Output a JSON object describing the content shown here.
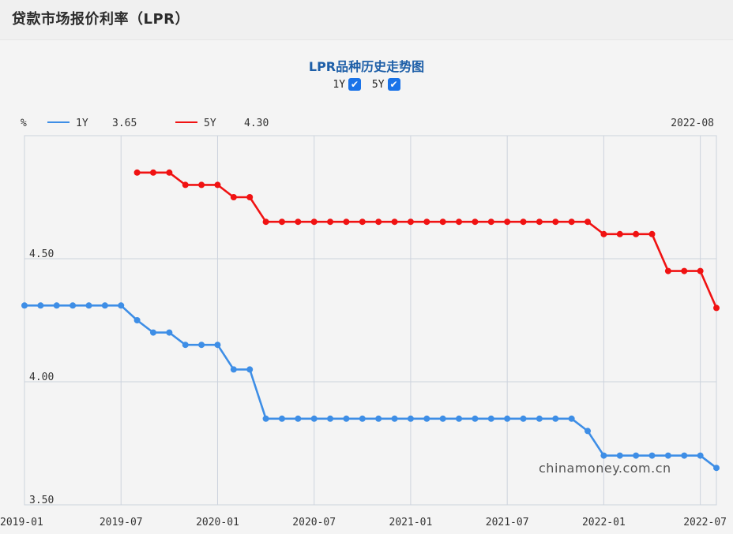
{
  "page_title": "贷款市场报价利率（LPR）",
  "chart_title": "LPR品种历史走势图",
  "toggles": [
    {
      "label": "1Y",
      "checked": true
    },
    {
      "label": "5Y",
      "checked": true
    }
  ],
  "watermark": "chinamoney.com.cn",
  "colors": {
    "series_1y": "#3e8ee6",
    "series_5y": "#f01212",
    "grid": "#cdd3dd",
    "axis_text": "#333333"
  },
  "chart_data": {
    "type": "line",
    "ylabel": "%",
    "cursor_date": "2022-08",
    "ylim": [
      3.5,
      5.0
    ],
    "y_ticks": [
      {
        "value": 3.5,
        "label": "3.50"
      },
      {
        "value": 4.0,
        "label": "4.00"
      },
      {
        "value": 4.5,
        "label": "4.50"
      }
    ],
    "x_ticks": [
      "2019-01",
      "2019-07",
      "2020-01",
      "2020-07",
      "2021-01",
      "2021-07",
      "2022-01",
      "2022-07"
    ],
    "x_range": [
      "2019-01",
      "2022-08"
    ],
    "grid": true,
    "legend_position": "top-left",
    "series": [
      {
        "name": "1Y",
        "latest": "3.65",
        "data": [
          [
            "2019-01",
            4.31
          ],
          [
            "2019-02",
            4.31
          ],
          [
            "2019-03",
            4.31
          ],
          [
            "2019-04",
            4.31
          ],
          [
            "2019-05",
            4.31
          ],
          [
            "2019-06",
            4.31
          ],
          [
            "2019-07",
            4.31
          ],
          [
            "2019-08",
            4.25
          ],
          [
            "2019-09",
            4.2
          ],
          [
            "2019-10",
            4.2
          ],
          [
            "2019-11",
            4.15
          ],
          [
            "2019-12",
            4.15
          ],
          [
            "2020-01",
            4.15
          ],
          [
            "2020-02",
            4.05
          ],
          [
            "2020-03",
            4.05
          ],
          [
            "2020-04",
            3.85
          ],
          [
            "2020-05",
            3.85
          ],
          [
            "2020-06",
            3.85
          ],
          [
            "2020-07",
            3.85
          ],
          [
            "2020-08",
            3.85
          ],
          [
            "2020-09",
            3.85
          ],
          [
            "2020-10",
            3.85
          ],
          [
            "2020-11",
            3.85
          ],
          [
            "2020-12",
            3.85
          ],
          [
            "2021-01",
            3.85
          ],
          [
            "2021-02",
            3.85
          ],
          [
            "2021-03",
            3.85
          ],
          [
            "2021-04",
            3.85
          ],
          [
            "2021-05",
            3.85
          ],
          [
            "2021-06",
            3.85
          ],
          [
            "2021-07",
            3.85
          ],
          [
            "2021-08",
            3.85
          ],
          [
            "2021-09",
            3.85
          ],
          [
            "2021-10",
            3.85
          ],
          [
            "2021-11",
            3.85
          ],
          [
            "2021-12",
            3.8
          ],
          [
            "2022-01",
            3.7
          ],
          [
            "2022-02",
            3.7
          ],
          [
            "2022-03",
            3.7
          ],
          [
            "2022-04",
            3.7
          ],
          [
            "2022-05",
            3.7
          ],
          [
            "2022-06",
            3.7
          ],
          [
            "2022-07",
            3.7
          ],
          [
            "2022-08",
            3.65
          ]
        ]
      },
      {
        "name": "5Y",
        "latest": "4.30",
        "data": [
          [
            "2019-08",
            4.85
          ],
          [
            "2019-09",
            4.85
          ],
          [
            "2019-10",
            4.85
          ],
          [
            "2019-11",
            4.8
          ],
          [
            "2019-12",
            4.8
          ],
          [
            "2020-01",
            4.8
          ],
          [
            "2020-02",
            4.75
          ],
          [
            "2020-03",
            4.75
          ],
          [
            "2020-04",
            4.65
          ],
          [
            "2020-05",
            4.65
          ],
          [
            "2020-06",
            4.65
          ],
          [
            "2020-07",
            4.65
          ],
          [
            "2020-08",
            4.65
          ],
          [
            "2020-09",
            4.65
          ],
          [
            "2020-10",
            4.65
          ],
          [
            "2020-11",
            4.65
          ],
          [
            "2020-12",
            4.65
          ],
          [
            "2021-01",
            4.65
          ],
          [
            "2021-02",
            4.65
          ],
          [
            "2021-03",
            4.65
          ],
          [
            "2021-04",
            4.65
          ],
          [
            "2021-05",
            4.65
          ],
          [
            "2021-06",
            4.65
          ],
          [
            "2021-07",
            4.65
          ],
          [
            "2021-08",
            4.65
          ],
          [
            "2021-09",
            4.65
          ],
          [
            "2021-10",
            4.65
          ],
          [
            "2021-11",
            4.65
          ],
          [
            "2021-12",
            4.65
          ],
          [
            "2022-01",
            4.6
          ],
          [
            "2022-02",
            4.6
          ],
          [
            "2022-03",
            4.6
          ],
          [
            "2022-04",
            4.6
          ],
          [
            "2022-05",
            4.45
          ],
          [
            "2022-06",
            4.45
          ],
          [
            "2022-07",
            4.45
          ],
          [
            "2022-08",
            4.3
          ]
        ]
      }
    ]
  }
}
